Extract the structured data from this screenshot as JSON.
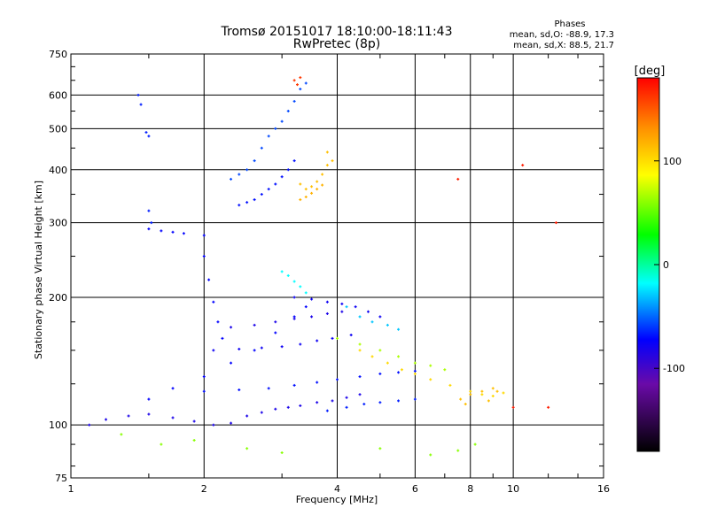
{
  "chart_data": {
    "type": "scatter",
    "title": "Tromsø 20151017 18:10:00-18:11:43",
    "subtitle": "RwPretec (8p)",
    "xlabel": "Frequency [MHz]",
    "ylabel": "Stationary phase Virtual Height [km]",
    "x_scale": "log",
    "y_scale": "log",
    "xlim": [
      1,
      16
    ],
    "ylim": [
      75,
      750
    ],
    "x_ticks": [
      {
        "value": 1,
        "label": "1"
      },
      {
        "value": 2,
        "label": "2"
      },
      {
        "value": 4,
        "label": "4"
      },
      {
        "value": 6,
        "label": "6"
      },
      {
        "value": 8,
        "label": "8"
      },
      {
        "value": 10,
        "label": "10"
      },
      {
        "value": 16,
        "label": "16"
      }
    ],
    "y_ticks": [
      {
        "value": 75,
        "label": "75"
      },
      {
        "value": 100,
        "label": "100"
      },
      {
        "value": 200,
        "label": "200"
      },
      {
        "value": 300,
        "label": "300"
      },
      {
        "value": 400,
        "label": "400"
      },
      {
        "value": 500,
        "label": "500"
      },
      {
        "value": 600,
        "label": "600"
      },
      {
        "value": 750,
        "label": "750"
      }
    ],
    "grid": true,
    "legend": {
      "title": "Phases",
      "lines": [
        "mean, sd,O: -88.9, 17.3",
        "mean, sd,X:  88.5, 21.7"
      ],
      "placement": "top-right"
    },
    "colorbar": {
      "label": "[deg]",
      "vmin": -180,
      "vmax": 180,
      "ticks": [
        {
          "value": 100,
          "label": "100"
        },
        {
          "value": 0,
          "label": "0"
        },
        {
          "value": -100,
          "label": "-100"
        }
      ],
      "stops": [
        "#000000",
        "#6a0aa8",
        "#0000ff",
        "#00ffff",
        "#00ff00",
        "#ffff00",
        "#ff8c00",
        "#ff0000"
      ]
    },
    "series": [
      {
        "points": [
          [
            1.1,
            100
          ],
          [
            1.2,
            103
          ],
          [
            1.35,
            105
          ],
          [
            1.5,
            106
          ],
          [
            1.7,
            104
          ],
          [
            1.9,
            102
          ],
          [
            2.1,
            100
          ],
          [
            2.3,
            101
          ],
          [
            2.5,
            105
          ],
          [
            2.7,
            107
          ],
          [
            2.9,
            109
          ],
          [
            3.1,
            110
          ],
          [
            3.3,
            111
          ],
          [
            3.6,
            113
          ],
          [
            3.9,
            114
          ],
          [
            4.2,
            116
          ],
          [
            4.5,
            118
          ]
        ],
        "phase": -120
      },
      {
        "points": [
          [
            1.5,
            115
          ],
          [
            1.7,
            122
          ],
          [
            2.0,
            130
          ],
          [
            2.3,
            140
          ],
          [
            2.6,
            150
          ],
          [
            2.9,
            165
          ],
          [
            3.2,
            180
          ],
          [
            3.4,
            190
          ]
        ],
        "phase": -110
      },
      {
        "points": [
          [
            2.1,
            150
          ],
          [
            2.4,
            151
          ],
          [
            2.7,
            152
          ],
          [
            3.0,
            153
          ],
          [
            3.3,
            155
          ],
          [
            3.6,
            158
          ],
          [
            3.9,
            160
          ],
          [
            4.3,
            163
          ]
        ],
        "phase": -115
      },
      {
        "points": [
          [
            2.0,
            120
          ],
          [
            2.4,
            121
          ],
          [
            2.8,
            122
          ],
          [
            3.2,
            124
          ],
          [
            3.6,
            126
          ],
          [
            4.0,
            128
          ],
          [
            4.5,
            130
          ],
          [
            5.0,
            132
          ],
          [
            5.5,
            133
          ],
          [
            6.0,
            134
          ]
        ],
        "phase": -105
      },
      {
        "points": [
          [
            3.2,
            200
          ],
          [
            3.5,
            198
          ],
          [
            3.8,
            195
          ],
          [
            4.1,
            193
          ],
          [
            4.4,
            190
          ],
          [
            4.7,
            185
          ],
          [
            5.0,
            180
          ]
        ],
        "phase": -115
      },
      {
        "points": [
          [
            2.3,
            170
          ],
          [
            2.6,
            172
          ],
          [
            2.9,
            175
          ],
          [
            3.2,
            178
          ],
          [
            3.5,
            180
          ],
          [
            3.8,
            183
          ],
          [
            4.1,
            185
          ]
        ],
        "phase": -120
      },
      {
        "points": [
          [
            1.5,
            290
          ],
          [
            1.6,
            287
          ],
          [
            1.7,
            285
          ],
          [
            1.8,
            283
          ]
        ],
        "phase": -110
      },
      {
        "points": [
          [
            2.0,
            280
          ],
          [
            2.0,
            250
          ],
          [
            2.05,
            220
          ],
          [
            2.1,
            195
          ],
          [
            2.15,
            175
          ],
          [
            2.2,
            160
          ]
        ],
        "phase": -110
      },
      {
        "points": [
          [
            2.3,
            380
          ],
          [
            2.4,
            390
          ],
          [
            2.5,
            400
          ],
          [
            2.6,
            420
          ],
          [
            2.7,
            450
          ],
          [
            2.8,
            480
          ],
          [
            2.9,
            500
          ],
          [
            3.0,
            520
          ],
          [
            3.1,
            550
          ],
          [
            3.2,
            580
          ],
          [
            3.3,
            620
          ],
          [
            3.4,
            640
          ]
        ],
        "phase": -85
      },
      {
        "points": [
          [
            2.4,
            330
          ],
          [
            2.5,
            335
          ],
          [
            2.6,
            340
          ],
          [
            2.7,
            350
          ],
          [
            2.8,
            360
          ],
          [
            2.9,
            370
          ],
          [
            3.0,
            385
          ],
          [
            3.1,
            400
          ],
          [
            3.2,
            420
          ]
        ],
        "phase": -105
      },
      {
        "points": [
          [
            3.3,
            370
          ],
          [
            3.4,
            360
          ],
          [
            3.5,
            365
          ],
          [
            3.6,
            375
          ],
          [
            3.7,
            390
          ],
          [
            3.8,
            410
          ],
          [
            3.9,
            420
          ],
          [
            3.8,
            440
          ]
        ],
        "phase": 110
      },
      {
        "points": [
          [
            3.3,
            340
          ],
          [
            3.4,
            345
          ],
          [
            3.5,
            352
          ],
          [
            3.6,
            360
          ],
          [
            3.7,
            368
          ]
        ],
        "phase": 115
      },
      {
        "points": [
          [
            4.0,
            160
          ],
          [
            4.5,
            155
          ],
          [
            5.0,
            150
          ],
          [
            5.5,
            145
          ],
          [
            6.0,
            140
          ],
          [
            6.5,
            138
          ],
          [
            7.0,
            135
          ]
        ],
        "phase": 60
      },
      {
        "points": [
          [
            4.5,
            150
          ],
          [
            4.8,
            145
          ],
          [
            5.2,
            140
          ],
          [
            5.6,
            135
          ],
          [
            6.0,
            132
          ],
          [
            6.5,
            128
          ],
          [
            7.2,
            124
          ],
          [
            8.0,
            120
          ],
          [
            8.5,
            118
          ],
          [
            9.0,
            117
          ],
          [
            9.5,
            119
          ]
        ],
        "phase": 100
      },
      {
        "points": [
          [
            7.6,
            115
          ],
          [
            8.0,
            118
          ],
          [
            8.5,
            120
          ],
          [
            9.0,
            122
          ],
          [
            9.2,
            120
          ],
          [
            8.8,
            114
          ],
          [
            7.8,
            112
          ]
        ],
        "phase": 110
      },
      {
        "points": [
          [
            3.8,
            108
          ],
          [
            4.2,
            110
          ],
          [
            4.6,
            112
          ],
          [
            5.0,
            113
          ],
          [
            5.5,
            114
          ],
          [
            6.0,
            115
          ]
        ],
        "phase": -100
      },
      {
        "points": [
          [
            3.0,
            230
          ],
          [
            3.1,
            225
          ],
          [
            3.2,
            218
          ],
          [
            3.3,
            212
          ],
          [
            3.4,
            205
          ]
        ],
        "phase": -20
      },
      {
        "points": [
          [
            4.2,
            190
          ],
          [
            4.5,
            180
          ],
          [
            4.8,
            175
          ],
          [
            5.2,
            172
          ],
          [
            5.5,
            168
          ]
        ],
        "phase": -40
      },
      {
        "points": [
          [
            3.2,
            650
          ],
          [
            3.3,
            660
          ],
          [
            3.25,
            635
          ]
        ],
        "phase": 160
      },
      {
        "points": [
          [
            1.42,
            600
          ],
          [
            1.44,
            570
          ],
          [
            1.48,
            490
          ],
          [
            1.5,
            480
          ],
          [
            1.5,
            320
          ],
          [
            1.52,
            300
          ]
        ],
        "phase": -100
      },
      {
        "points": [
          [
            1.3,
            95
          ],
          [
            1.6,
            90
          ],
          [
            1.9,
            92
          ],
          [
            2.5,
            88
          ],
          [
            3.0,
            86
          ],
          [
            5.0,
            88
          ],
          [
            6.5,
            85
          ],
          [
            7.5,
            87
          ],
          [
            8.2,
            90
          ]
        ],
        "phase": 50
      },
      {
        "points": [
          [
            10.0,
            110
          ],
          [
            12.0,
            110
          ],
          [
            10.5,
            410
          ],
          [
            12.5,
            300
          ],
          [
            7.5,
            380
          ]
        ],
        "phase": 170
      }
    ]
  }
}
